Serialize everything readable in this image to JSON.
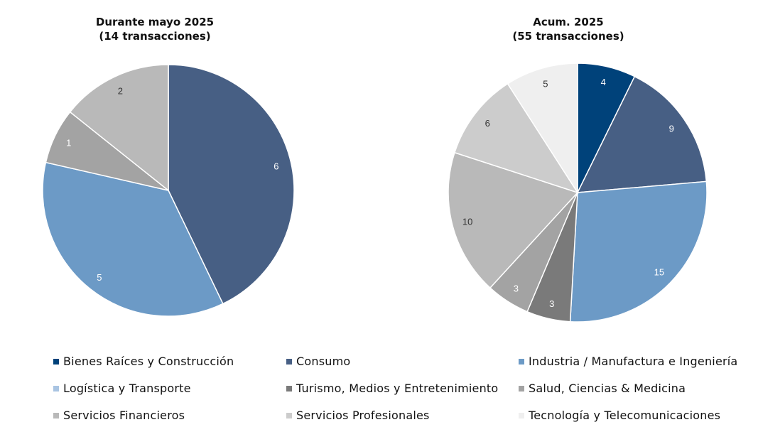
{
  "chart_data": [
    {
      "type": "pie",
      "title": "Durante mayo 2025",
      "subtitle": "(14 transacciones)",
      "slices": [
        {
          "name": "Consumo",
          "value": 6,
          "label": "6"
        },
        {
          "name": "Industria / Manufactura e Ingeniería",
          "value": 5,
          "label": "5"
        },
        {
          "name": "Salud, Ciencias & Medicina",
          "value": 1,
          "label": "1"
        },
        {
          "name": "Servicios Financieros",
          "value": 2,
          "label": "2"
        }
      ]
    },
    {
      "type": "pie",
      "title": "Acum. 2025",
      "subtitle": "(55 transacciones)",
      "slices": [
        {
          "name": "Bienes Raíces y Construcción",
          "value": 4,
          "label": "4"
        },
        {
          "name": "Consumo",
          "value": 9,
          "label": "9"
        },
        {
          "name": "Industria / Manufactura e Ingeniería",
          "value": 15,
          "label": "15"
        },
        {
          "name": "Turismo, Medios y Entretenimiento",
          "value": 3,
          "label": "3"
        },
        {
          "name": "Salud, Ciencias & Medicina",
          "value": 3,
          "label": "3"
        },
        {
          "name": "Servicios Financieros",
          "value": 10,
          "label": "10"
        },
        {
          "name": "Servicios Profesionales",
          "value": 6,
          "label": "6"
        },
        {
          "name": "Tecnología y Telecomunicaciones",
          "value": 5,
          "label": "5"
        }
      ]
    }
  ],
  "legend": {
    "placement": "bottom",
    "items": [
      {
        "name": "Bienes Raíces y Construcción",
        "color": "#00427a"
      },
      {
        "name": "Consumo",
        "color": "#475f84"
      },
      {
        "name": "Industria / Manufactura e Ingeniería",
        "color": "#6c9ac6"
      },
      {
        "name": "Logística y Transporte",
        "color": "#a9c4e2"
      },
      {
        "name": "Turismo, Medios y Entretenimiento",
        "color": "#7a7a7a"
      },
      {
        "name": "Salud, Ciencias & Medicina",
        "color": "#a3a3a3"
      },
      {
        "name": "Servicios Financieros",
        "color": "#b9b9b9"
      },
      {
        "name": "Servicios Profesionales",
        "color": "#cccccc"
      },
      {
        "name": "Tecnología y Telecomunicaciones",
        "color": "#efefef"
      }
    ]
  }
}
